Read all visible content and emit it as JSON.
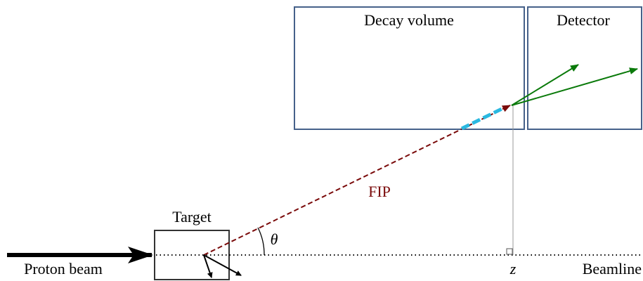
{
  "labels": {
    "decay_volume": "Decay volume",
    "detector": "Detector",
    "target": "Target",
    "fip": "FIP",
    "theta": "θ",
    "z": "z",
    "proton_beam": "Proton beam",
    "beamline": "Beamline"
  }
}
